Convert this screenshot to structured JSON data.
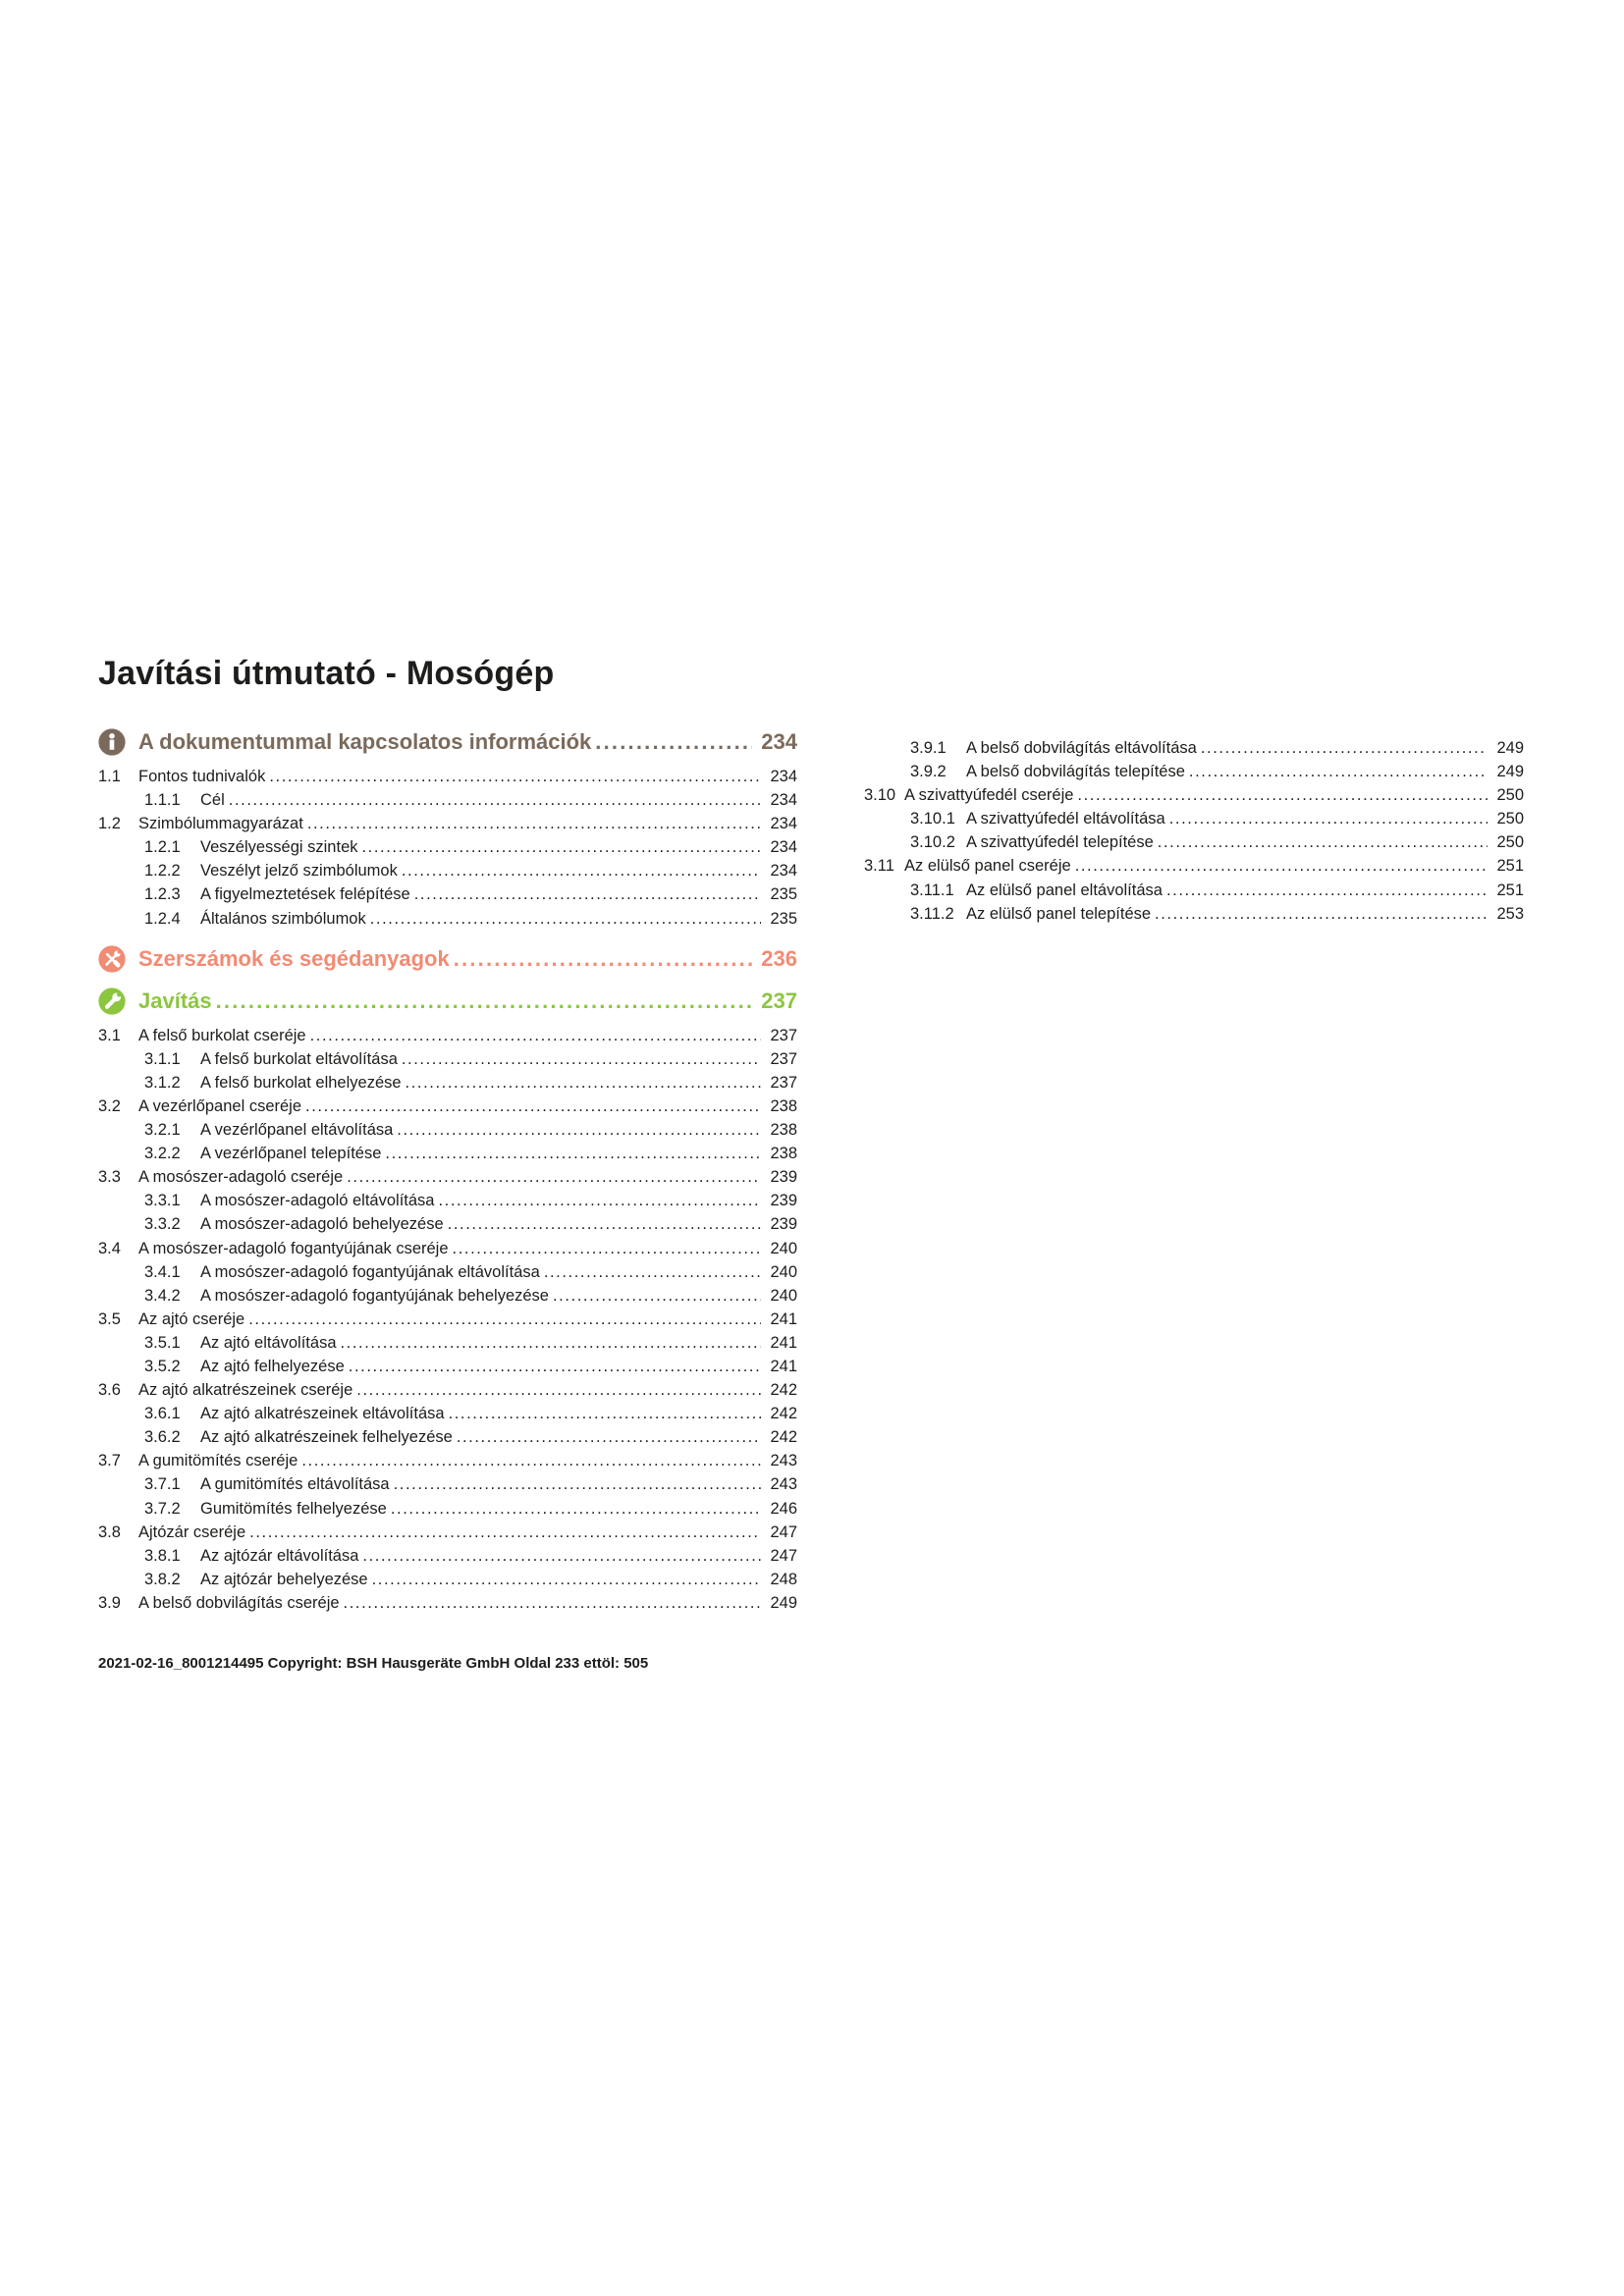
{
  "page": {
    "title": "Javítási útmutató - Mosógép",
    "footer": "2021-02-16_8001214495 Copyright: BSH Hausgeräte GmbH Oldal 233 ettöl: 505"
  },
  "colors": {
    "section_info": "#7b6a5c",
    "section_tools": "#f18b74",
    "section_repair": "#8cc63f",
    "text": "#1d1d1b"
  },
  "toc": {
    "left_column": [
      {
        "type": "section",
        "name": "document-info",
        "icon": "info-icon",
        "color": "section_info",
        "label": "A dokumentummal kapcsolatos információk",
        "page": "234"
      },
      {
        "type": "l2",
        "num": "1.1",
        "label": "Fontos tudnivalók",
        "page": "234"
      },
      {
        "type": "l3",
        "num": "1.1.1",
        "label": "Cél",
        "page": "234"
      },
      {
        "type": "l2",
        "num": "1.2",
        "label": "Szimbólummagyarázat",
        "page": "234"
      },
      {
        "type": "l3",
        "num": "1.2.1",
        "label": "Veszélyességi szintek",
        "page": "234"
      },
      {
        "type": "l3",
        "num": "1.2.2",
        "label": "Veszélyt jelző szimbólumok",
        "page": "234"
      },
      {
        "type": "l3",
        "num": "1.2.3",
        "label": "A figyelmeztetések felépítése",
        "page": "235"
      },
      {
        "type": "l3",
        "num": "1.2.4",
        "label": "Általános szimbólumok",
        "page": "235"
      },
      {
        "type": "section",
        "name": "tools-materials",
        "icon": "tools-icon",
        "color": "section_tools",
        "label": "Szerszámok és segédanyagok",
        "page": "236"
      },
      {
        "type": "section",
        "name": "repair",
        "icon": "wrench-icon",
        "color": "section_repair",
        "label": "Javítás",
        "page": "237"
      },
      {
        "type": "l2",
        "num": "3.1",
        "label": "A felső burkolat cseréje",
        "page": "237"
      },
      {
        "type": "l3",
        "num": "3.1.1",
        "label": "A felső burkolat eltávolítása",
        "page": "237"
      },
      {
        "type": "l3",
        "num": "3.1.2",
        "label": "A felső burkolat elhelyezése",
        "page": "237"
      },
      {
        "type": "l2",
        "num": "3.2",
        "label": "A vezérlőpanel cseréje",
        "page": "238"
      },
      {
        "type": "l3",
        "num": "3.2.1",
        "label": "A vezérlőpanel eltávolítása",
        "page": "238"
      },
      {
        "type": "l3",
        "num": "3.2.2",
        "label": "A vezérlőpanel telepítése",
        "page": "238"
      },
      {
        "type": "l2",
        "num": "3.3",
        "label": "A mosószer-adagoló cseréje",
        "page": "239"
      },
      {
        "type": "l3",
        "num": "3.3.1",
        "label": "A mosószer-adagoló eltávolítása",
        "page": "239"
      },
      {
        "type": "l3",
        "num": "3.3.2",
        "label": "A mosószer-adagoló behelyezése",
        "page": "239"
      },
      {
        "type": "l2",
        "num": "3.4",
        "label": "A mosószer-adagoló fogantyújának cseréje",
        "page": "240"
      },
      {
        "type": "l3",
        "num": "3.4.1",
        "label": "A mosószer-adagoló fogantyújának eltávolítása",
        "page": "240"
      },
      {
        "type": "l3",
        "num": "3.4.2",
        "label": "A mosószer-adagoló fogantyújának behelyezése",
        "page": "240"
      },
      {
        "type": "l2",
        "num": "3.5",
        "label": "Az ajtó cseréje",
        "page": "241"
      },
      {
        "type": "l3",
        "num": "3.5.1",
        "label": "Az ajtó eltávolítása",
        "page": "241"
      },
      {
        "type": "l3",
        "num": "3.5.2",
        "label": "Az ajtó felhelyezése",
        "page": "241"
      },
      {
        "type": "l2",
        "num": "3.6",
        "label": "Az ajtó alkatrészeinek cseréje",
        "page": "242"
      },
      {
        "type": "l3",
        "num": "3.6.1",
        "label": "Az ajtó alkatrészeinek eltávolítása",
        "page": "242"
      },
      {
        "type": "l3",
        "num": "3.6.2",
        "label": "Az ajtó alkatrészeinek felhelyezése",
        "page": "242"
      },
      {
        "type": "l2",
        "num": "3.7",
        "label": "A gumitömítés cseréje",
        "page": "243"
      },
      {
        "type": "l3",
        "num": "3.7.1",
        "label": "A gumitömítés eltávolítása",
        "page": "243"
      },
      {
        "type": "l3",
        "num": "3.7.2",
        "label": "Gumitömítés felhelyezése",
        "page": "246"
      },
      {
        "type": "l2",
        "num": "3.8",
        "label": "Ajtózár cseréje",
        "page": "247"
      },
      {
        "type": "l3",
        "num": "3.8.1",
        "label": "Az ajtózár eltávolítása",
        "page": "247"
      },
      {
        "type": "l3",
        "num": "3.8.2",
        "label": "Az ajtózár behelyezése",
        "page": "248"
      },
      {
        "type": "l2",
        "num": "3.9",
        "label": "A belső dobvilágítás cseréje",
        "page": "249"
      }
    ],
    "right_column": [
      {
        "type": "l3",
        "num": "3.9.1",
        "label": "A belső dobvilágítás eltávolítása",
        "page": "249"
      },
      {
        "type": "l3",
        "num": "3.9.2",
        "label": "A belső dobvilágítás telepítése",
        "page": "249"
      },
      {
        "type": "l2",
        "num": "3.10",
        "label": "A szivattyúfedél cseréje",
        "page": "250"
      },
      {
        "type": "l3",
        "num": "3.10.1",
        "label": "A szivattyúfedél eltávolítása",
        "page": "250"
      },
      {
        "type": "l3",
        "num": "3.10.2",
        "label": "A szivattyúfedél telepítése",
        "page": "250"
      },
      {
        "type": "l2",
        "num": "3.11",
        "label": "Az elülső panel cseréje",
        "page": "251"
      },
      {
        "type": "l3",
        "num": "3.11.1",
        "label": "Az elülső panel eltávolítása",
        "page": "251"
      },
      {
        "type": "l3",
        "num": "3.11.2",
        "label": "Az elülső panel telepítése",
        "page": "253"
      }
    ]
  }
}
